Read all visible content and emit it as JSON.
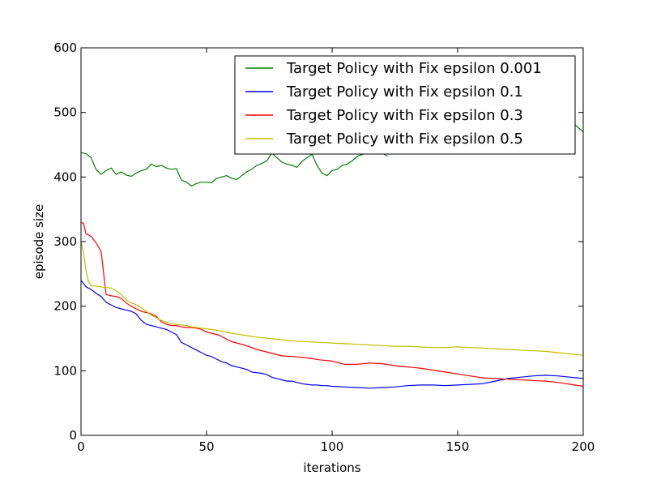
{
  "chart_data": {
    "type": "line",
    "xlabel": "iterations",
    "ylabel": "episode size",
    "xlim": [
      0,
      200
    ],
    "ylim": [
      0,
      600
    ],
    "xticks": [
      0,
      50,
      100,
      150,
      200
    ],
    "yticks": [
      0,
      100,
      200,
      300,
      400,
      500,
      600
    ],
    "grid": false,
    "legend_position": "top-right",
    "series": [
      {
        "name": "Target Policy with Fix epsilon 0.001",
        "color": "#008000",
        "x": [
          0,
          2,
          4,
          6,
          8,
          10,
          12,
          14,
          16,
          18,
          20,
          22,
          24,
          26,
          28,
          30,
          32,
          34,
          36,
          38,
          40,
          42,
          44,
          46,
          48,
          50,
          52,
          54,
          56,
          58,
          60,
          62,
          64,
          66,
          68,
          70,
          72,
          74,
          76,
          78,
          80,
          82,
          84,
          86,
          88,
          90,
          92,
          94,
          96,
          98,
          100,
          102,
          104,
          106,
          108,
          110,
          112,
          114,
          116,
          118,
          120,
          122
        ],
        "y": [
          438,
          436,
          430,
          412,
          404,
          410,
          414,
          404,
          408,
          403,
          401,
          406,
          410,
          412,
          420,
          416,
          418,
          414,
          412,
          413,
          395,
          392,
          386,
          390,
          392,
          392,
          391,
          398,
          400,
          402,
          398,
          396,
          402,
          408,
          412,
          418,
          421,
          425,
          437,
          430,
          423,
          420,
          418,
          415,
          424,
          430,
          435,
          418,
          406,
          402,
          410,
          412,
          418,
          420,
          425,
          432,
          435,
          437,
          436,
          438,
          437,
          432
        ]
      },
      {
        "name": "Target Policy with Fix epsilon 0.001 (continued)",
        "color": "#008000",
        "x": [
          193,
          195,
          197,
          200
        ],
        "y": [
          500,
          490,
          480,
          470
        ]
      },
      {
        "name": "Target Policy with Fix epsilon 0.1",
        "color": "#0000ff",
        "x": [
          0,
          2,
          4,
          6,
          8,
          10,
          12,
          14,
          16,
          18,
          20,
          22,
          24,
          26,
          28,
          30,
          32,
          34,
          36,
          38,
          40,
          42,
          44,
          46,
          48,
          50,
          52,
          54,
          56,
          58,
          60,
          62,
          64,
          66,
          68,
          70,
          72,
          74,
          76,
          78,
          80,
          82,
          84,
          86,
          88,
          90,
          92,
          94,
          96,
          98,
          100,
          105,
          110,
          115,
          120,
          125,
          130,
          135,
          140,
          145,
          150,
          155,
          160,
          165,
          170,
          175,
          180,
          185,
          190,
          195,
          200
        ],
        "y": [
          240,
          230,
          226,
          220,
          215,
          206,
          202,
          198,
          196,
          194,
          192,
          188,
          178,
          172,
          170,
          168,
          166,
          164,
          160,
          156,
          144,
          140,
          136,
          132,
          128,
          124,
          122,
          118,
          114,
          112,
          108,
          106,
          104,
          102,
          98,
          97,
          96,
          94,
          90,
          88,
          86,
          84,
          84,
          82,
          80,
          79,
          78,
          78,
          77,
          77,
          76,
          75,
          74,
          73,
          74,
          75,
          77,
          78,
          78,
          77,
          78,
          79,
          80,
          84,
          88,
          90,
          92,
          93,
          92,
          90,
          88
        ]
      },
      {
        "name": "Target Policy with Fix epsilon 0.3",
        "color": "#ff0000",
        "x": [
          0,
          1,
          2,
          4,
          6,
          8,
          10,
          12,
          14,
          16,
          18,
          20,
          22,
          24,
          26,
          28,
          30,
          32,
          34,
          36,
          38,
          40,
          42,
          44,
          46,
          48,
          50,
          55,
          60,
          65,
          70,
          75,
          80,
          85,
          90,
          95,
          100,
          105,
          110,
          115,
          120,
          125,
          130,
          135,
          140,
          145,
          150,
          155,
          160,
          165,
          170,
          175,
          180,
          185,
          190,
          195,
          200
        ],
        "y": [
          330,
          328,
          312,
          308,
          298,
          285,
          218,
          216,
          215,
          212,
          205,
          200,
          196,
          192,
          190,
          188,
          184,
          176,
          172,
          170,
          170,
          168,
          167,
          167,
          166,
          164,
          160,
          155,
          145,
          140,
          133,
          128,
          123,
          122,
          120,
          117,
          115,
          110,
          110,
          112,
          111,
          108,
          106,
          104,
          101,
          98,
          95,
          92,
          89,
          88,
          87,
          86,
          85,
          84,
          82,
          79,
          76
        ]
      },
      {
        "name": "Target Policy with Fix epsilon 0.5",
        "color": "#bfbf00",
        "x": [
          0,
          1,
          2,
          3,
          4,
          6,
          8,
          10,
          12,
          14,
          16,
          18,
          20,
          22,
          24,
          26,
          28,
          30,
          32,
          34,
          36,
          38,
          40,
          42,
          44,
          46,
          48,
          50,
          55,
          60,
          65,
          70,
          75,
          80,
          85,
          90,
          95,
          100,
          105,
          110,
          115,
          120,
          125,
          130,
          135,
          140,
          145,
          150,
          155,
          160,
          165,
          170,
          175,
          180,
          185,
          190,
          195,
          200
        ],
        "y": [
          300,
          284,
          255,
          238,
          232,
          231,
          230,
          229,
          228,
          224,
          218,
          210,
          205,
          202,
          198,
          192,
          186,
          182,
          178,
          175,
          173,
          172,
          171,
          170,
          168,
          167,
          166,
          165,
          162,
          158,
          155,
          152,
          150,
          148,
          146,
          145,
          144,
          143,
          142,
          141,
          140,
          139,
          138,
          138,
          137,
          136,
          136,
          137,
          136,
          135,
          134,
          133,
          132,
          131,
          130,
          128,
          126,
          124
        ]
      }
    ],
    "legend": [
      {
        "label": "Target Policy with Fix epsilon 0.001",
        "color": "#008000"
      },
      {
        "label": "Target Policy with Fix epsilon 0.1",
        "color": "#0000ff"
      },
      {
        "label": "Target Policy with Fix epsilon 0.3",
        "color": "#ff0000"
      },
      {
        "label": "Target Policy with Fix epsilon 0.5",
        "color": "#bfbf00"
      }
    ]
  }
}
